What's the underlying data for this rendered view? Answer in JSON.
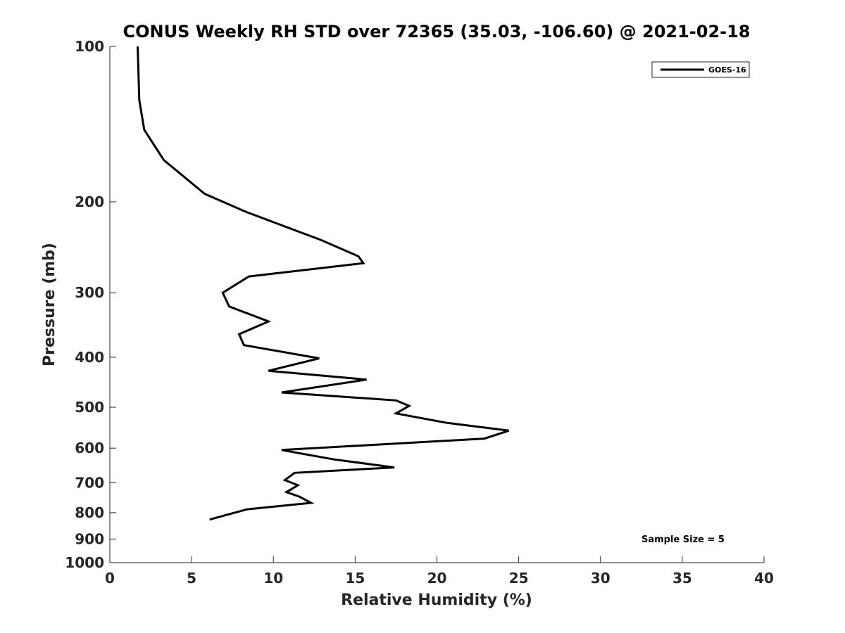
{
  "chart_data": {
    "type": "line",
    "title": "CONUS Weekly RH STD over 72365 (35.03, -106.60) @ 2021-02-18",
    "xlabel": "Relative Humidity (%)",
    "ylabel": "Pressure (mb)",
    "xlim": [
      0,
      40
    ],
    "ylim": [
      100,
      1000
    ],
    "y_scale": "log",
    "y_inverted": true,
    "x_ticks": [
      "0",
      "5",
      "10",
      "15",
      "20",
      "25",
      "30",
      "35",
      "40"
    ],
    "y_ticks": [
      "100",
      "200",
      "300",
      "400",
      "500",
      "600",
      "700",
      "800",
      "900",
      "1000"
    ],
    "grid": false,
    "legend_position": "top-right",
    "series": [
      {
        "name": "GOES-16",
        "color": "#000000",
        "x": [
          1.7,
          1.8,
          2.1,
          3.3,
          5.8,
          8.3,
          10.0,
          12.9,
          15.2,
          15.5,
          8.5,
          6.9,
          7.3,
          9.7,
          7.9,
          8.2,
          12.8,
          9.7,
          15.7,
          10.5,
          17.5,
          18.3,
          17.5,
          20.6,
          24.4,
          22.9,
          10.5,
          13.7,
          17.4,
          11.3,
          10.7,
          11.5,
          10.8,
          11.6,
          12.3,
          8.4,
          6.1
        ],
        "y": [
          100,
          127,
          145,
          166,
          193,
          209,
          219,
          237,
          255,
          263,
          279,
          300,
          319,
          341,
          361,
          379,
          402,
          425,
          442,
          468,
          485,
          497,
          514,
          536,
          555,
          575,
          605,
          631,
          654,
          670,
          692,
          708,
          730,
          745,
          766,
          788,
          825
        ]
      }
    ],
    "annotation": "Sample Size = 5"
  }
}
